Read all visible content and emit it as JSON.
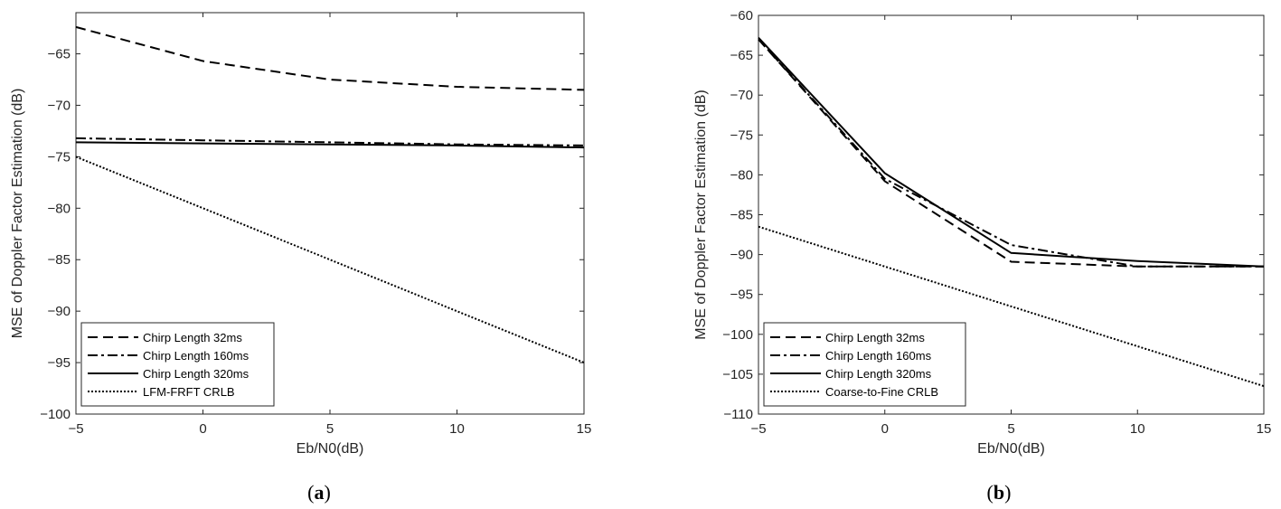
{
  "chart_data": [
    {
      "type": "line",
      "caption": "a",
      "xlabel": "Eb/N0(dB)",
      "ylabel": "MSE of Doppler Factor Estimation (dB)",
      "xlim": [
        -5,
        15
      ],
      "ylim": [
        -100,
        -61
      ],
      "xticks": [
        -5,
        0,
        5,
        10,
        15
      ],
      "yticks": [
        -100,
        -95,
        -90,
        -85,
        -80,
        -75,
        -70,
        -65
      ],
      "xtick_labels": [
        "−5",
        "0",
        "5",
        "10",
        "15"
      ],
      "ytick_labels": [
        "−100",
        "−95",
        "−90",
        "−85",
        "−80",
        "−75",
        "−70",
        "−65"
      ],
      "grid": false,
      "legend_position": "bottom-left",
      "series": [
        {
          "name": "Chirp Length 32ms",
          "style": "dashed",
          "x": [
            -5,
            0,
            5,
            10,
            15
          ],
          "y": [
            -62.4,
            -65.7,
            -67.5,
            -68.2,
            -68.5
          ]
        },
        {
          "name": "Chirp Length 160ms",
          "style": "dashdot",
          "x": [
            -5,
            0,
            5,
            10,
            15
          ],
          "y": [
            -73.2,
            -73.4,
            -73.6,
            -73.8,
            -73.9
          ]
        },
        {
          "name": "Chirp Length 320ms",
          "style": "solid",
          "x": [
            -5,
            0,
            5,
            10,
            15
          ],
          "y": [
            -73.6,
            -73.7,
            -73.8,
            -73.9,
            -74.1
          ]
        },
        {
          "name": "LFM-FRFT CRLB",
          "style": "dotted",
          "x": [
            -5,
            0,
            5,
            10,
            15
          ],
          "y": [
            -75.0,
            -80.0,
            -85.0,
            -90.0,
            -95.0
          ]
        }
      ]
    },
    {
      "type": "line",
      "caption": "b",
      "xlabel": "Eb/N0(dB)",
      "ylabel": "MSE of Doppler Factor Estimation (dB)",
      "xlim": [
        -5,
        15
      ],
      "ylim": [
        -110,
        -60
      ],
      "xticks": [
        -5,
        0,
        5,
        10,
        15
      ],
      "yticks": [
        -110,
        -105,
        -100,
        -95,
        -90,
        -85,
        -80,
        -75,
        -70,
        -65,
        -60
      ],
      "xtick_labels": [
        "−5",
        "0",
        "5",
        "10",
        "15"
      ],
      "ytick_labels": [
        "−110",
        "−105",
        "−100",
        "−95",
        "−90",
        "−85",
        "−80",
        "−75",
        "−70",
        "−65",
        "−60"
      ],
      "grid": false,
      "legend_position": "bottom-left",
      "series": [
        {
          "name": "Chirp Length 32ms",
          "style": "dashed",
          "x": [
            -5,
            0,
            5,
            10,
            15
          ],
          "y": [
            -63.0,
            -80.8,
            -90.9,
            -91.5,
            -91.5
          ]
        },
        {
          "name": "Chirp Length 160ms",
          "style": "dashdot",
          "x": [
            -5,
            0,
            5,
            10,
            15
          ],
          "y": [
            -63.0,
            -80.5,
            -88.8,
            -91.5,
            -91.5
          ]
        },
        {
          "name": "Chirp Length 320ms",
          "style": "solid",
          "x": [
            -5,
            0,
            5,
            10,
            15
          ],
          "y": [
            -62.8,
            -79.8,
            -89.8,
            -90.8,
            -91.5
          ]
        },
        {
          "name": "Coarse-to-Fine CRLB",
          "style": "dotted",
          "x": [
            -5,
            15
          ],
          "y": [
            -86.5,
            -106.5
          ]
        }
      ]
    }
  ]
}
